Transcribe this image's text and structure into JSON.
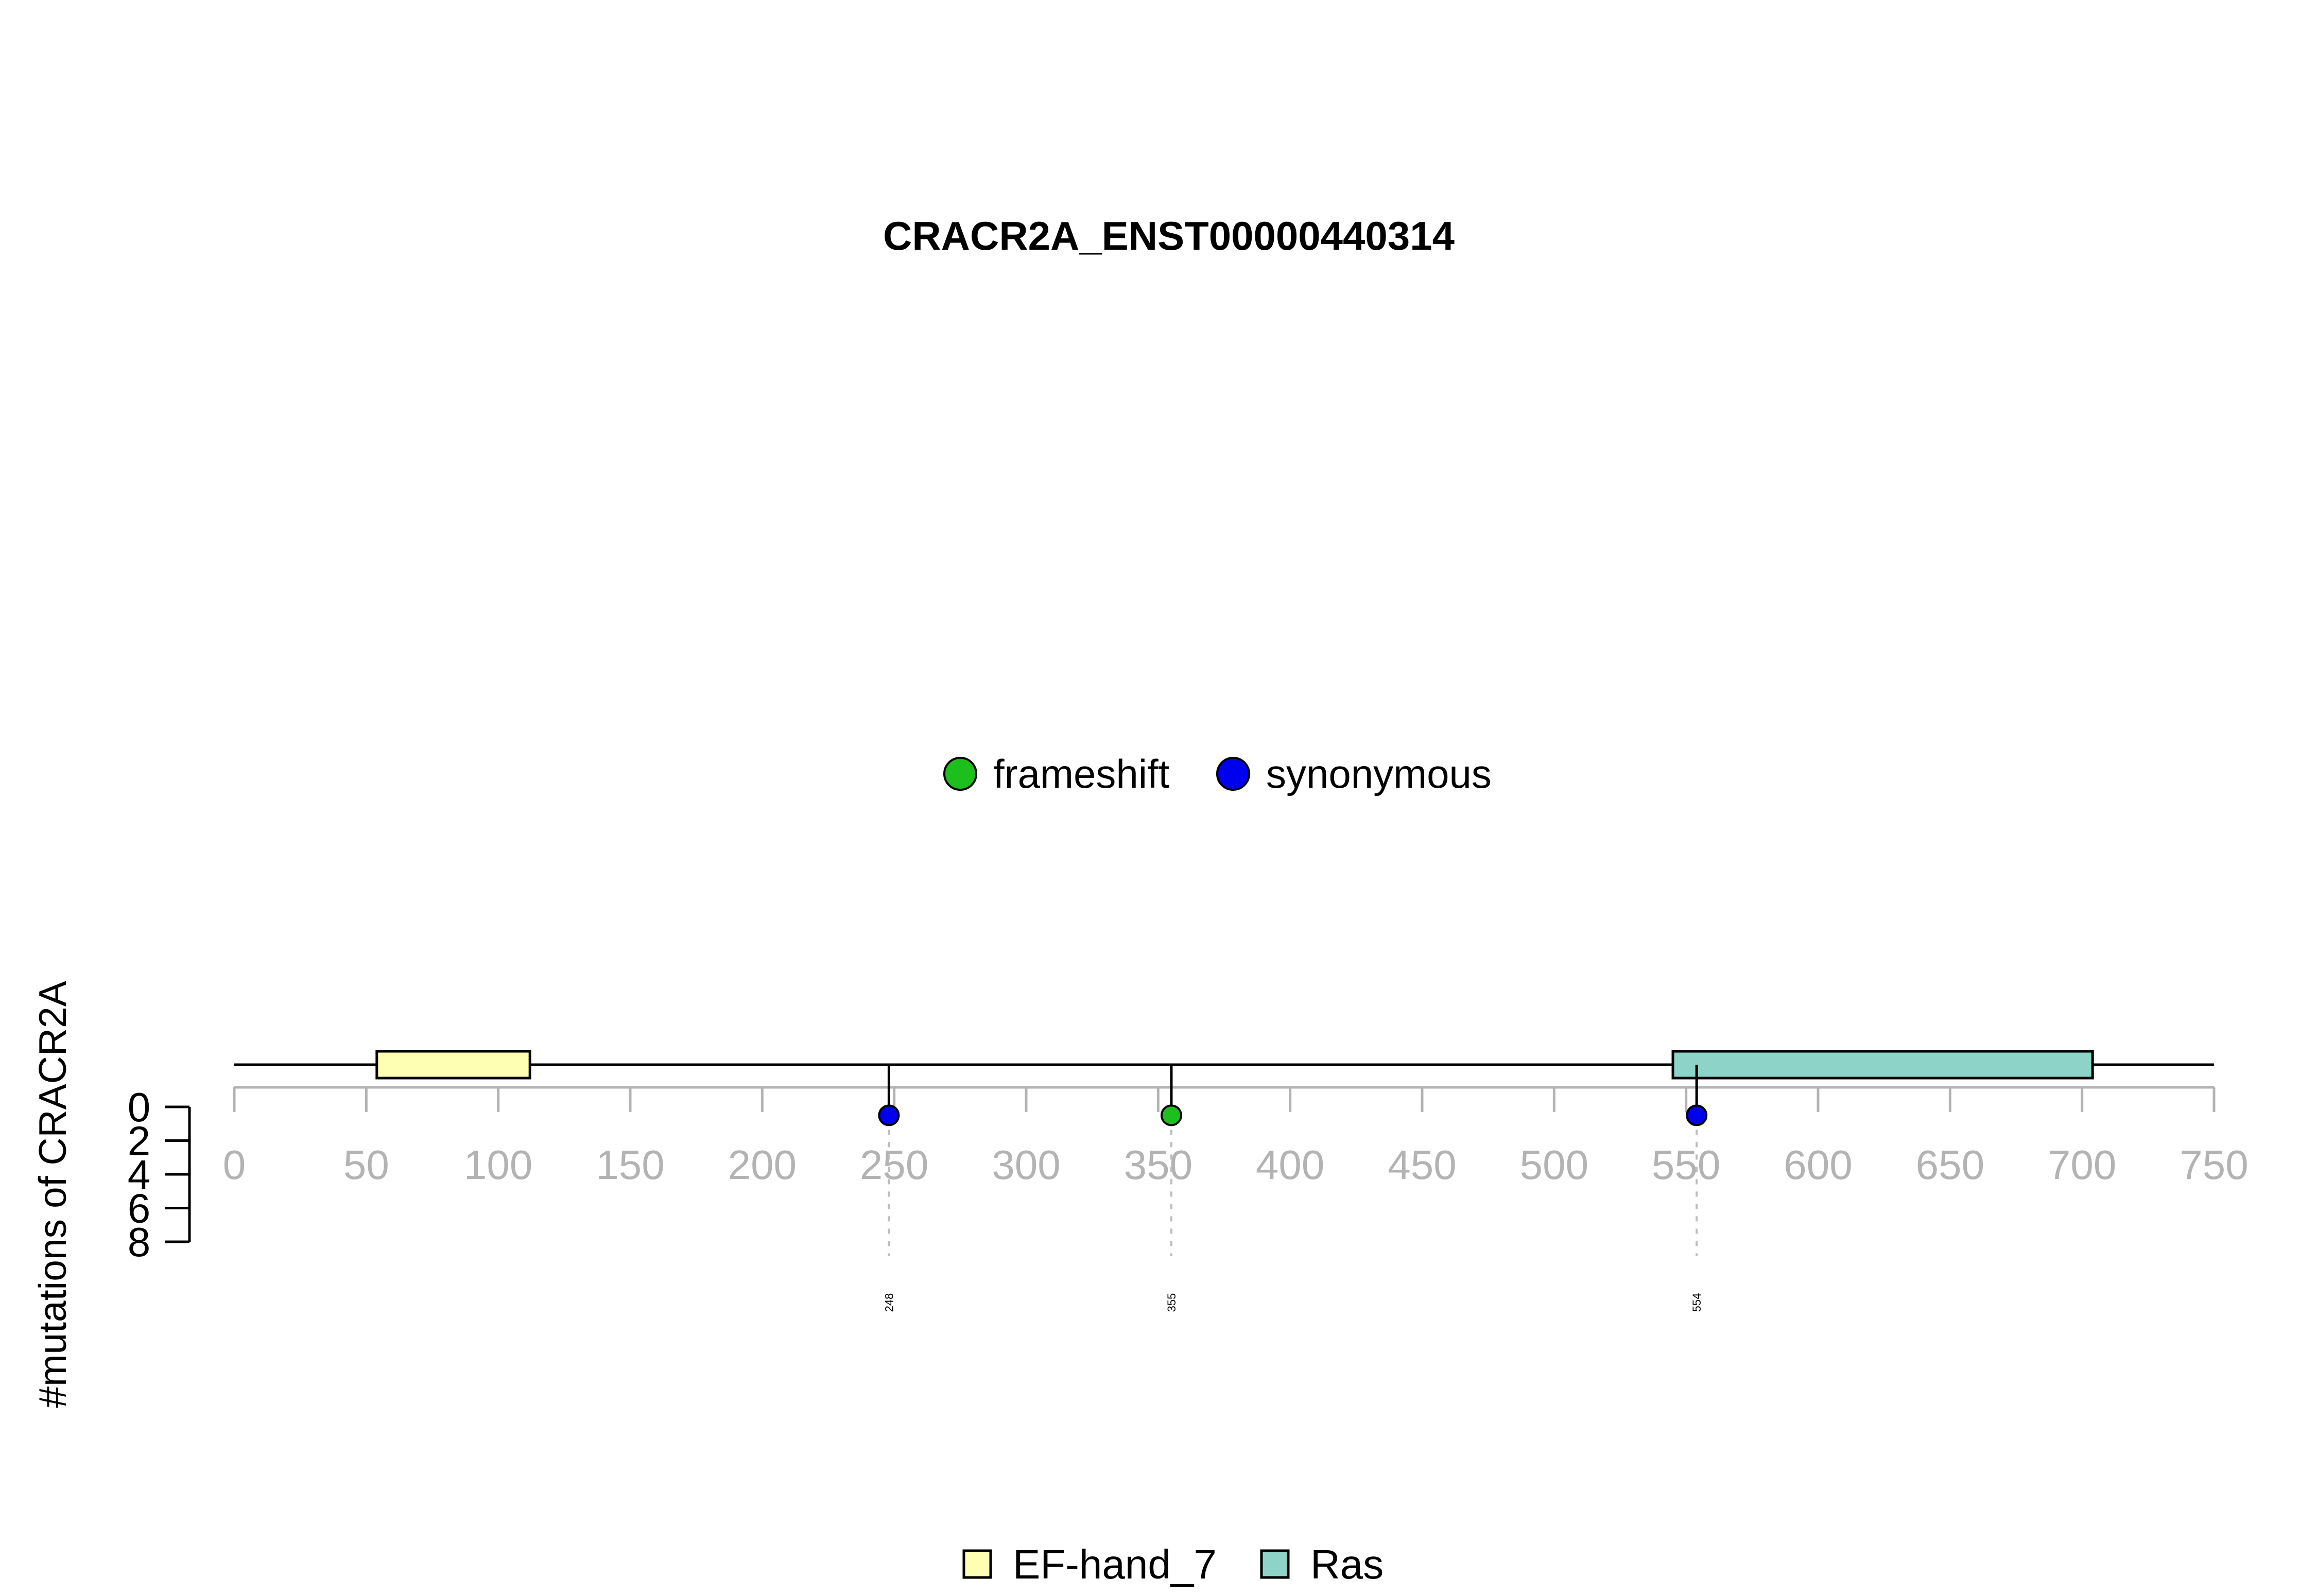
{
  "chart_data": {
    "type": "lollipop",
    "title": "CRACR2A_ENST00000440314",
    "ylabel": "#mutations of CRACR2A",
    "xlim": [
      0,
      750
    ],
    "x_ticks": [
      0,
      50,
      100,
      150,
      200,
      250,
      300,
      350,
      400,
      450,
      500,
      550,
      600,
      650,
      700,
      750
    ],
    "y_ticks": [
      0,
      2,
      4,
      6,
      8
    ],
    "ylim": [
      0,
      8
    ],
    "protein_length": 750,
    "domains": [
      {
        "name": "EF-hand_7",
        "start": 54,
        "end": 112,
        "color": "#FFFFB3"
      },
      {
        "name": "Ras",
        "start": 545,
        "end": 704,
        "color": "#8DD3C7"
      }
    ],
    "mutation_types": [
      {
        "name": "frameshift",
        "color": "#1DBF1D"
      },
      {
        "name": "synonymous",
        "color": "#0000F0"
      }
    ],
    "mutations": [
      {
        "position": 248,
        "count": 0.5,
        "type": "synonymous",
        "label": "248"
      },
      {
        "position": 355,
        "count": 0.5,
        "type": "frameshift",
        "label": "355"
      },
      {
        "position": 554,
        "count": 0.5,
        "type": "synonymous",
        "label": "554"
      }
    ],
    "legend_mutations_position": "top-center",
    "legend_domains_position": "bottom-center",
    "grid": false
  }
}
